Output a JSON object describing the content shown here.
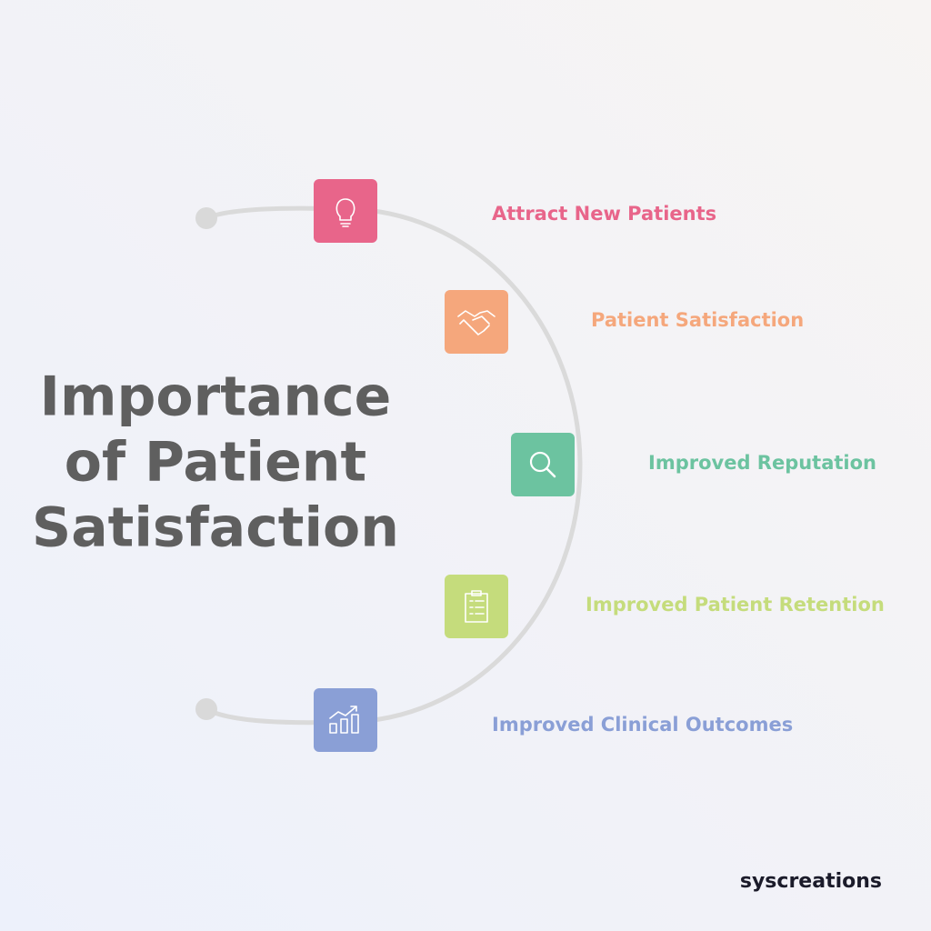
{
  "title": {
    "lines": [
      "Importance",
      "of Patient",
      "Satisfaction"
    ],
    "color": "#5f5f5f"
  },
  "items": [
    {
      "label": "Attract New Patients",
      "color": "#e8658a"
    },
    {
      "label": "Patient Satisfaction",
      "color": "#f5a77c"
    },
    {
      "label": "Improved Reputation",
      "color": "#6cc3a0"
    },
    {
      "label": "Improved Patient Retention",
      "color": "#c5dc7c"
    },
    {
      "label": "Improved Clinical Outcomes",
      "color": "#8a9fd6"
    }
  ],
  "brand": "syscreations"
}
